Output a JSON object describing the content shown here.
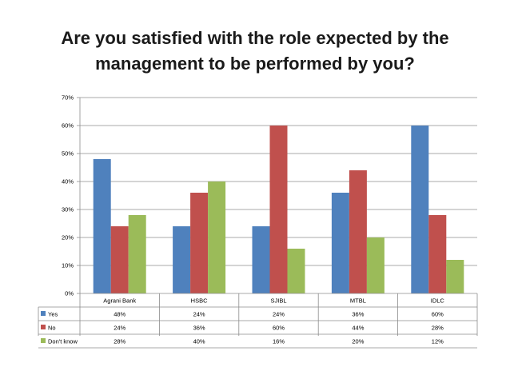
{
  "title_line1": "Are you satisfied with the role expected by the",
  "title_line2": "management to be performed by you?",
  "chart_data": {
    "type": "bar",
    "title": "Are you satisfied with the role expected by the management to be performed by you?",
    "categories": [
      "Agrani Bank",
      "HSBC",
      "SJIBL",
      "MTBL",
      "IDLC"
    ],
    "series": [
      {
        "name": "Yes",
        "color": "#4F81BD",
        "values": [
          48,
          24,
          24,
          36,
          60
        ],
        "labels": [
          "48%",
          "24%",
          "24%",
          "36%",
          "60%"
        ]
      },
      {
        "name": "No",
        "color": "#C0504D",
        "values": [
          24,
          36,
          60,
          44,
          28
        ],
        "labels": [
          "24%",
          "36%",
          "60%",
          "44%",
          "28%"
        ]
      },
      {
        "name": "Don't know",
        "color": "#9BBB59",
        "values": [
          28,
          40,
          16,
          20,
          12
        ],
        "labels": [
          "28%",
          "40%",
          "16%",
          "20%",
          "12%"
        ]
      }
    ],
    "ylim": [
      0,
      70
    ],
    "yticks": [
      0,
      10,
      20,
      30,
      40,
      50,
      60,
      70
    ],
    "ytick_labels": [
      "0%",
      "10%",
      "20%",
      "30%",
      "40%",
      "50%",
      "60%",
      "70%"
    ],
    "xlabel": "",
    "ylabel": "",
    "grid": true,
    "legend": "data-table"
  }
}
